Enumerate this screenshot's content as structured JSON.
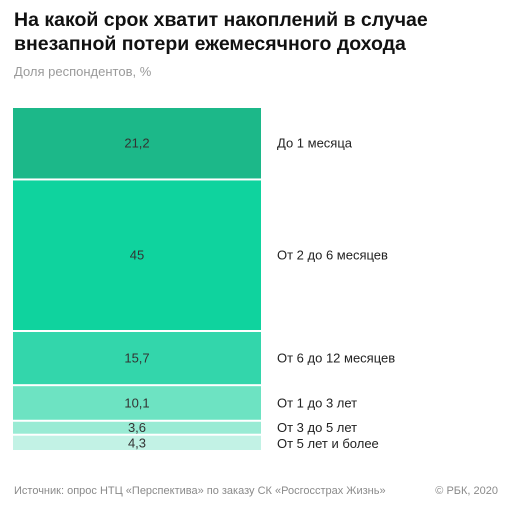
{
  "chart_data": {
    "type": "bar",
    "orientation": "stacked-vertical",
    "title": "На какой срок хватит накоплений в случае внезапной потери ежемесячного дохода",
    "subtitle": "Доля респондентов, %",
    "categories": [
      "До 1 месяца",
      "От 2 до 6 месяцев",
      "От 6 до 12 месяцев",
      "От 1 до 3 лет",
      "От 3 до 5 лет",
      "От 5 лет и более"
    ],
    "values": [
      21.2,
      45,
      15.7,
      10.1,
      3.6,
      4.3
    ],
    "value_labels": [
      "21,2",
      "45",
      "15,7",
      "10,1",
      "3,6",
      "4,3"
    ],
    "colors": [
      "#1cb889",
      "#0fd39e",
      "#33d6ab",
      "#6de3c2",
      "#99ebd4",
      "#c2f2e5"
    ]
  },
  "footer": {
    "source": "Источник: опрос НТЦ «Перспектива» по заказу СК «Росгосстрах Жизнь»",
    "copyright": "© РБК, 2020"
  }
}
